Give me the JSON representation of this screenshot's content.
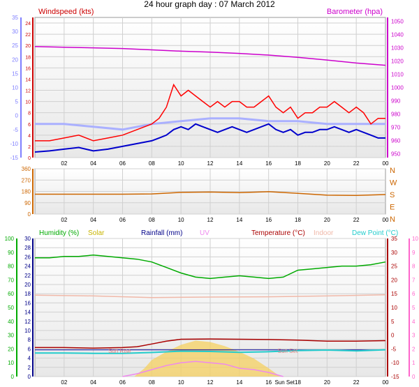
{
  "title": "24 hour graph day : 07 March 2012",
  "colors": {
    "windspeed": "#cc0000",
    "barometer": "#cc00cc",
    "wind_dir": "#cc6600",
    "humidity": "#00aa00",
    "solar": "#c8b400",
    "rainfall": "#000099",
    "uv": "#ee88ee",
    "temperature": "#aa0000",
    "indoor": "#f0b8a8",
    "dew_point": "#22cccc",
    "axis_blue": "#7f7fff",
    "gust_red": "#ff0000",
    "avg_blue": "#0000cc",
    "rain_axis": "#000088",
    "uv_axis": "#ff66cc",
    "panel_bg": "#e8e8e8"
  },
  "chart_data": [
    {
      "type": "line",
      "name": "wind-barometer",
      "labels": {
        "left": "Windspeed (kts)",
        "right": "Barometer (hpa)"
      },
      "x_ticks": [
        "02",
        "04",
        "06",
        "08",
        "10",
        "12",
        "14",
        "16",
        "18",
        "20",
        "22",
        "00"
      ],
      "left_axis_outer": {
        "ticks": [
          35,
          30,
          25,
          20,
          15,
          10,
          5,
          0,
          -5,
          -10,
          -15
        ]
      },
      "left_axis_inner": {
        "ticks": [
          24,
          22,
          20,
          18,
          16,
          14,
          12,
          10,
          8,
          6,
          4,
          2,
          0
        ],
        "ylim": [
          0,
          25
        ]
      },
      "right_axis": {
        "ticks": [
          1050,
          1040,
          1030,
          1020,
          1010,
          1000,
          990,
          980,
          970,
          960,
          950
        ],
        "ylim": [
          947,
          1053
        ]
      },
      "series": [
        {
          "name": "Barometer (hpa)",
          "axis": "right",
          "x": [
            0,
            2,
            4,
            6,
            8,
            10,
            12,
            14,
            16,
            18,
            20,
            22,
            24
          ],
          "values": [
            1031,
            1030.5,
            1030,
            1029.5,
            1028.5,
            1027.5,
            1026.8,
            1025.8,
            1024.5,
            1022.8,
            1020.8,
            1018.5,
            1016.8
          ]
        },
        {
          "name": "Gust",
          "axis": "left_inner",
          "x": [
            0,
            1,
            2,
            3,
            4,
            5,
            6,
            7,
            8,
            8.5,
            9,
            9.5,
            10,
            10.5,
            11,
            11.5,
            12,
            12.5,
            13,
            13.5,
            14,
            14.5,
            15,
            15.5,
            16,
            16.5,
            17,
            17.5,
            18,
            18.5,
            19,
            19.5,
            20,
            20.5,
            21,
            21.5,
            22,
            22.5,
            23,
            23.5,
            24
          ],
          "values": [
            3,
            3,
            3.5,
            4,
            3,
            3.5,
            4,
            5,
            6,
            7,
            9,
            13,
            11,
            12,
            11,
            10,
            9,
            10,
            9,
            10,
            10,
            9,
            9,
            10,
            11,
            9,
            8,
            9,
            7,
            8,
            8,
            9,
            9,
            10,
            9,
            8,
            9,
            8,
            6,
            7,
            7
          ]
        },
        {
          "name": "Average",
          "axis": "left_inner",
          "x": [
            0,
            1,
            2,
            3,
            4,
            5,
            6,
            7,
            8,
            8.5,
            9,
            9.5,
            10,
            10.5,
            11,
            11.5,
            12,
            12.5,
            13,
            13.5,
            14,
            14.5,
            15,
            15.5,
            16,
            16.5,
            17,
            17.5,
            18,
            18.5,
            19,
            19.5,
            20,
            20.5,
            21,
            21.5,
            22,
            22.5,
            23,
            23.5,
            24
          ],
          "values": [
            1,
            1.2,
            1.5,
            1.8,
            1.2,
            1.5,
            2,
            2.5,
            3,
            3.5,
            4,
            5,
            5.5,
            5,
            6,
            5.5,
            5,
            4.5,
            5,
            5.5,
            5,
            4.5,
            5,
            5.5,
            6,
            5,
            4.5,
            5,
            4,
            4.5,
            4.5,
            5,
            5,
            5.5,
            5,
            4.5,
            5,
            4.5,
            4,
            3.5,
            3.5
          ]
        },
        {
          "name": "Temperature trace (outer axis)",
          "axis": "left_outer",
          "x": [
            0,
            2,
            4,
            6,
            8,
            10,
            12,
            14,
            16,
            18,
            20,
            22,
            24
          ],
          "values": [
            -3,
            -3,
            -4,
            -5,
            -3,
            -2,
            -1,
            -1,
            -2,
            -2,
            -3,
            -3,
            -3
          ]
        }
      ]
    },
    {
      "type": "line",
      "name": "wind-direction",
      "left_axis": {
        "ticks": [
          360,
          270,
          180,
          90,
          0
        ],
        "ylim": [
          0,
          360
        ]
      },
      "right_axis": {
        "ticks": [
          "N",
          "W",
          "S",
          "E",
          "N"
        ]
      },
      "x_ticks": [
        "02",
        "04",
        "06",
        "08",
        "10",
        "12",
        "14",
        "16",
        "18",
        "20",
        "22",
        "00"
      ],
      "series": [
        {
          "name": "Wind direction",
          "x": [
            0,
            2,
            4,
            6,
            8,
            10,
            12,
            14,
            16,
            18,
            20,
            22,
            24
          ],
          "values": [
            158,
            158,
            158,
            158,
            160,
            172,
            175,
            170,
            178,
            165,
            150,
            148,
            155
          ]
        }
      ]
    },
    {
      "type": "line",
      "name": "temperature-humidity",
      "labels": {
        "humidity": "Humidity (%)",
        "solar": "Solar",
        "rainfall": "Rainfall (mm)",
        "uv": "UV",
        "temperature": "Temperature (°C)",
        "indoor": "Indoor",
        "dew_point": "Dew Point (°C)"
      },
      "annotations": [
        "Sun Rise",
        "Sun Set",
        "Sun Set"
      ],
      "x_ticks": [
        "02",
        "04",
        "06",
        "08",
        "10",
        "12",
        "14",
        "16",
        "Sun Set",
        "18",
        "20",
        "22",
        "00"
      ],
      "humidity_axis": {
        "ticks": [
          100,
          90,
          80,
          70,
          60,
          50,
          40,
          30,
          20,
          10,
          0
        ],
        "ylim": [
          0,
          100
        ]
      },
      "rain_axis": {
        "ticks": [
          30,
          28,
          26,
          24,
          22,
          20,
          18,
          16,
          14,
          12,
          10,
          8,
          6,
          4,
          2,
          0
        ],
        "ylim": [
          0,
          30
        ]
      },
      "temp_axis": {
        "ticks": [
          35,
          30,
          25,
          20,
          15,
          10,
          5,
          0,
          -5,
          -10,
          -15
        ],
        "ylim": [
          -15,
          35
        ]
      },
      "uv_axis": {
        "ticks": [
          10,
          9,
          8,
          7,
          6,
          5,
          4,
          3,
          2,
          1,
          0
        ],
        "ylim": [
          0,
          10
        ]
      },
      "series": [
        {
          "name": "Humidity (%)",
          "axis": "humidity",
          "x": [
            0,
            1,
            2,
            3,
            4,
            5,
            6,
            7,
            8,
            9,
            10,
            11,
            12,
            13,
            14,
            15,
            16,
            17,
            18,
            19,
            20,
            21,
            22,
            23,
            24
          ],
          "values": [
            86,
            86,
            87,
            87,
            88,
            87,
            86,
            85,
            83,
            79,
            75,
            72,
            71,
            72,
            73,
            72,
            71,
            72,
            77,
            78,
            79,
            80,
            80,
            81,
            83
          ]
        },
        {
          "name": "Indoor",
          "axis": "temp",
          "x": [
            0,
            4,
            8,
            12,
            16,
            20,
            24
          ],
          "values": [
            14.5,
            14.2,
            13.6,
            13.8,
            13.9,
            14.2,
            14.6
          ]
        },
        {
          "name": "Temperature (°C)",
          "axis": "temp",
          "x": [
            0,
            2,
            4,
            6,
            7,
            8,
            9,
            10,
            12,
            14,
            16,
            18,
            20,
            22,
            24
          ],
          "values": [
            -4.5,
            -4.5,
            -4.7,
            -4.5,
            -4.2,
            -3.2,
            -2.2,
            -1.5,
            -1.4,
            -1.5,
            -1.6,
            -1.8,
            -2.2,
            -2.2,
            -2.0
          ]
        },
        {
          "name": "Dew Point (°C)",
          "axis": "temp",
          "x": [
            0,
            2,
            4,
            6,
            8,
            10,
            12,
            14,
            16,
            18,
            20,
            22,
            24
          ],
          "values": [
            -6.5,
            -6.5,
            -6.6,
            -6.6,
            -6.3,
            -5.8,
            -5.9,
            -6.2,
            -6.0,
            -5.6,
            -5.4,
            -5.7,
            -5.3
          ]
        },
        {
          "name": "Rainfall (mm)",
          "axis": "rain",
          "x": [
            0,
            24
          ],
          "values": [
            5.8,
            5.8
          ]
        },
        {
          "name": "UV",
          "axis": "uv",
          "x": [
            6,
            7,
            8,
            9,
            10,
            11,
            12,
            13,
            14,
            15,
            16,
            17
          ],
          "values": [
            0,
            0.2,
            0.5,
            0.8,
            1.0,
            1.1,
            1.0,
            0.9,
            0.6,
            0.5,
            0.3,
            0
          ]
        },
        {
          "name": "Solar",
          "axis": "uv",
          "x": [
            6.8,
            7.5,
            8,
            9,
            10,
            11,
            12,
            13,
            14,
            15,
            16,
            16.8
          ],
          "values": [
            0,
            0.6,
            1.2,
            1.8,
            2.3,
            2.6,
            2.5,
            2.2,
            1.8,
            1.3,
            0.6,
            0
          ]
        }
      ]
    }
  ]
}
